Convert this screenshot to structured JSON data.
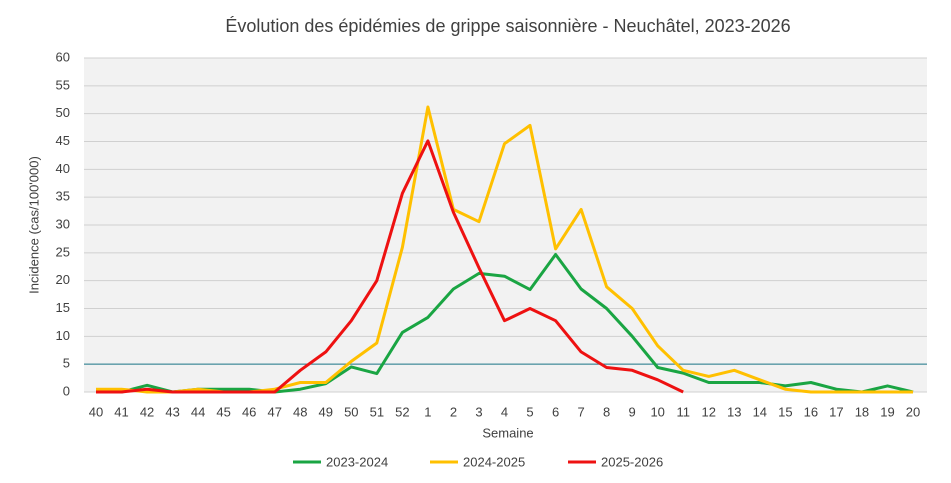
{
  "chart_data": {
    "type": "line",
    "title": "Évolution des épidémies de grippe saisonnière - Neuchâtel, 2023-2026",
    "x_label": "Semaine",
    "y_label": "Incidence (cas/100'000)",
    "categories": [
      "40",
      "41",
      "42",
      "43",
      "44",
      "45",
      "46",
      "47",
      "48",
      "49",
      "50",
      "51",
      "52",
      "1",
      "2",
      "3",
      "4",
      "5",
      "6",
      "7",
      "8",
      "9",
      "10",
      "11",
      "12",
      "13",
      "14",
      "15",
      "16",
      "17",
      "18",
      "19",
      "20"
    ],
    "series": [
      {
        "name": "2023-2024",
        "color": "#1aa543",
        "values": [
          0,
          0,
          1.2,
          0,
          0.5,
          0.5,
          0.5,
          0,
          0.5,
          1.5,
          4.5,
          3.3,
          10.7,
          13.4,
          18.5,
          21.3,
          20.8,
          18.4,
          24.7,
          18.5,
          15,
          10,
          4.4,
          3.4,
          1.7,
          1.7,
          1.7,
          1.1,
          1.7,
          0.5,
          0,
          1.1,
          0
        ]
      },
      {
        "name": "2024-2025",
        "color": "#ffc000",
        "values": [
          0.5,
          0.5,
          0,
          0,
          0.5,
          0,
          0,
          0.5,
          1.7,
          1.7,
          5.5,
          8.8,
          26,
          51.2,
          32.8,
          30.6,
          44.6,
          47.9,
          25.7,
          32.8,
          18.9,
          15,
          8.3,
          3.9,
          2.8,
          3.9,
          2.2,
          0.5,
          0,
          0,
          0,
          0,
          0
        ]
      },
      {
        "name": "2025-2026",
        "color": "#ee1111",
        "values": [
          0,
          0,
          0.5,
          0,
          0,
          0,
          0,
          0,
          3.9,
          7.2,
          12.8,
          20,
          35.7,
          45.1,
          32.3,
          22.3,
          12.8,
          15,
          12.8,
          7.2,
          4.4,
          3.9,
          2.2,
          0,
          null,
          null,
          null,
          null,
          null,
          null,
          null,
          null,
          null
        ]
      }
    ],
    "threshold": {
      "value": 5,
      "color": "#1f7a8c"
    },
    "ylim": [
      0,
      60
    ],
    "yticks": [
      0,
      5,
      10,
      15,
      20,
      25,
      30,
      35,
      40,
      45,
      50,
      55,
      60
    ],
    "grid": true,
    "legend": "bottom"
  }
}
